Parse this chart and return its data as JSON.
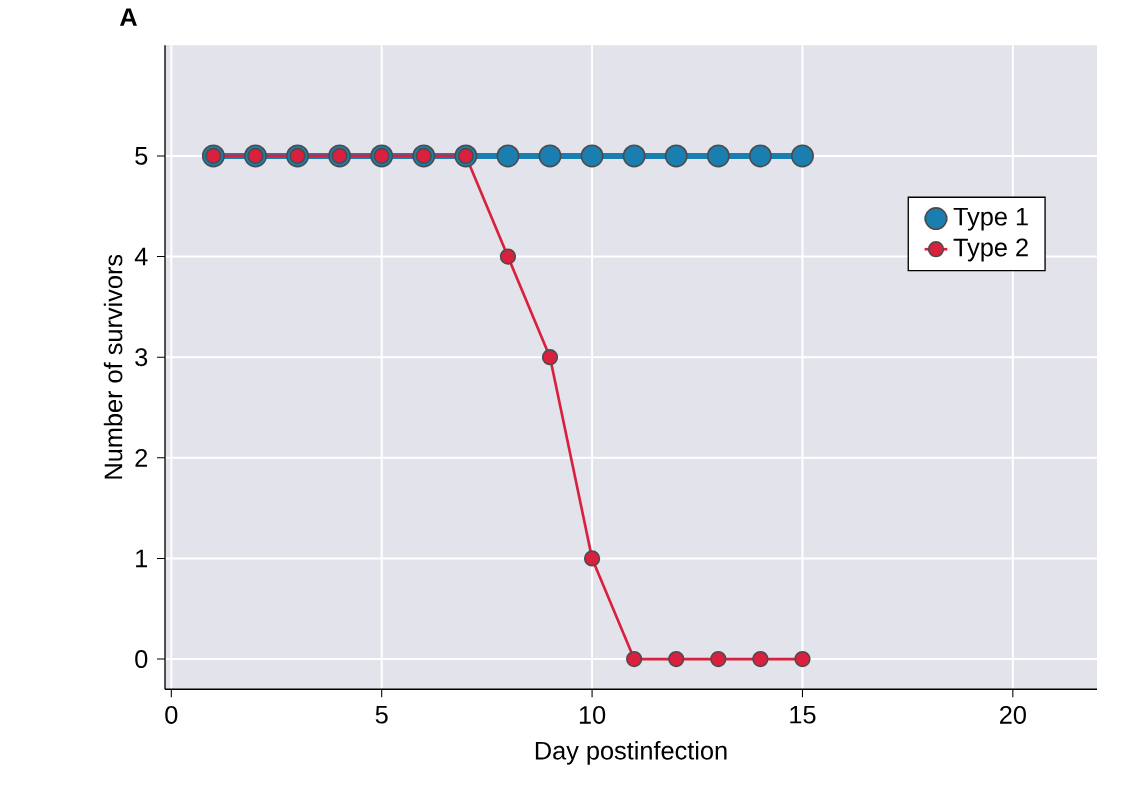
{
  "chart_data": {
    "type": "line",
    "title": "A",
    "xlabel": "Day postinfection",
    "ylabel": "Number of survivors",
    "xlim": [
      -0.15,
      22
    ],
    "ylim": [
      -0.3,
      6.1
    ],
    "xticks": [
      0,
      5,
      10,
      15,
      20
    ],
    "yticks": [
      0,
      1,
      2,
      3,
      4,
      5
    ],
    "grid": true,
    "legend": "right",
    "marker": "circle",
    "line_style": "solid",
    "series": [
      {
        "name": "Type 1",
        "color": "#1a7fb0",
        "x": [
          1,
          2,
          3,
          4,
          5,
          6,
          7,
          8,
          9,
          10,
          11,
          12,
          13,
          14,
          15
        ],
        "values": [
          5,
          5,
          5,
          5,
          5,
          5,
          5,
          5,
          5,
          5,
          5,
          5,
          5,
          5,
          5
        ]
      },
      {
        "name": "Type 2",
        "color": "#d9203f",
        "x": [
          1,
          2,
          3,
          4,
          5,
          6,
          7,
          8,
          9,
          10,
          11,
          12,
          13,
          14,
          15
        ],
        "values": [
          5,
          5,
          5,
          5,
          5,
          5,
          5,
          4,
          3,
          1,
          0,
          0,
          0,
          0,
          0
        ]
      }
    ]
  }
}
